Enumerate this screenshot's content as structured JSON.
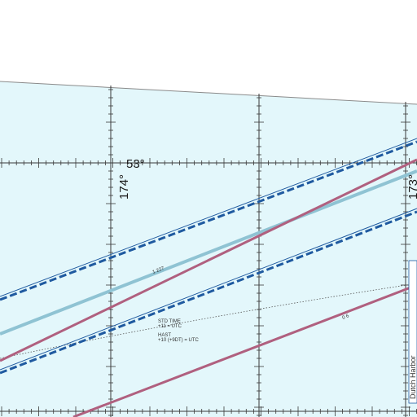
{
  "map": {
    "colors": {
      "background": "#ffffff",
      "water": "#e3f7fb",
      "grid": "#3a3a3a",
      "airway_dashed": "#1f5aa0",
      "airway_light": "#8fc3d3",
      "airway_magenta": "#b0607f",
      "timezone_line": "#555555"
    },
    "graticule": {
      "latitude_label": "53°",
      "longitude_label_left": "174°",
      "longitude_label_right": "173°"
    },
    "airways": {
      "light_route_label": "1 227",
      "magenta_route_label": "0 6"
    },
    "time_zones": {
      "std_line1": "STD TIME",
      "std_line2": "+11 = UTC",
      "hast_line1": "HAST",
      "hast_line2": "+10 (+9DT) = UTC"
    },
    "edge_note": "Dutch Harbor"
  }
}
